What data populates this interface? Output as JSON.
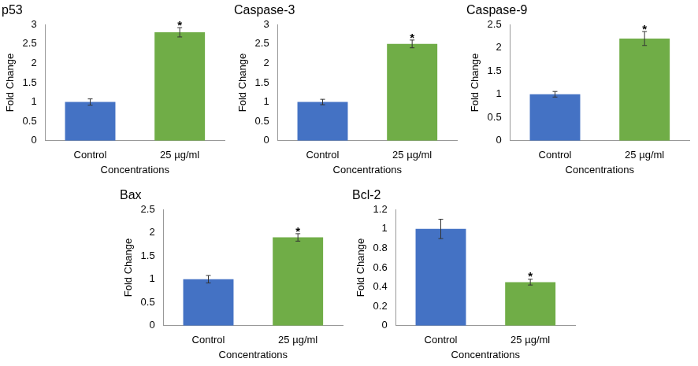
{
  "chart_data": [
    {
      "type": "bar",
      "title": "p53",
      "x_label": "Concentrations",
      "y_label": "Fold Change",
      "categories": [
        "Control",
        "25 µg/ml"
      ],
      "values": [
        1.0,
        2.8
      ],
      "errors": [
        0.08,
        0.12
      ],
      "colors": [
        "#4472c4",
        "#70ad47"
      ],
      "ylim": [
        0,
        3
      ],
      "yticks": [
        0,
        0.5,
        1,
        1.5,
        2,
        2.5,
        3
      ],
      "grid": false,
      "annotations": [
        {
          "category": "25 µg/ml",
          "text": "*"
        }
      ]
    },
    {
      "type": "bar",
      "title": "Caspase-3",
      "x_label": "Concentrations",
      "y_label": "Fold Change",
      "categories": [
        "Control",
        "25 µg/ml"
      ],
      "values": [
        1.0,
        2.5
      ],
      "errors": [
        0.07,
        0.1
      ],
      "colors": [
        "#4472c4",
        "#70ad47"
      ],
      "ylim": [
        0,
        3
      ],
      "yticks": [
        0,
        0.5,
        1,
        1.5,
        2,
        2.5,
        3
      ],
      "grid": false,
      "annotations": [
        {
          "category": "25 µg/ml",
          "text": "*"
        }
      ]
    },
    {
      "type": "bar",
      "title": "Caspase-9",
      "x_label": "Concentrations",
      "y_label": "Fold Change",
      "categories": [
        "Control",
        "25 µg/ml"
      ],
      "values": [
        1.0,
        2.2
      ],
      "errors": [
        0.06,
        0.15
      ],
      "colors": [
        "#4472c4",
        "#70ad47"
      ],
      "ylim": [
        0,
        2.5
      ],
      "yticks": [
        0,
        0.5,
        1,
        1.5,
        2,
        2.5
      ],
      "grid": false,
      "annotations": [
        {
          "category": "25 µg/ml",
          "text": "*"
        }
      ]
    },
    {
      "type": "bar",
      "title": "Bax",
      "x_label": "Concentrations",
      "y_label": "Fold Change",
      "categories": [
        "Control",
        "25 µg/ml"
      ],
      "values": [
        1.0,
        1.9
      ],
      "errors": [
        0.08,
        0.08
      ],
      "colors": [
        "#4472c4",
        "#70ad47"
      ],
      "ylim": [
        0,
        2.5
      ],
      "yticks": [
        0,
        0.5,
        1,
        1.5,
        2,
        2.5
      ],
      "grid": false,
      "annotations": [
        {
          "category": "25 µg/ml",
          "text": "*"
        }
      ]
    },
    {
      "type": "bar",
      "title": "Bcl-2",
      "x_label": "Concentrations",
      "y_label": "Fold Change",
      "categories": [
        "Control",
        "25 µg/ml"
      ],
      "values": [
        1.0,
        0.45
      ],
      "errors": [
        0.1,
        0.03
      ],
      "colors": [
        "#4472c4",
        "#70ad47"
      ],
      "ylim": [
        0,
        1.2
      ],
      "yticks": [
        0,
        0.2,
        0.4,
        0.6,
        0.8,
        1,
        1.2
      ],
      "grid": false,
      "annotations": [
        {
          "category": "25 µg/ml",
          "text": "*"
        }
      ]
    }
  ]
}
